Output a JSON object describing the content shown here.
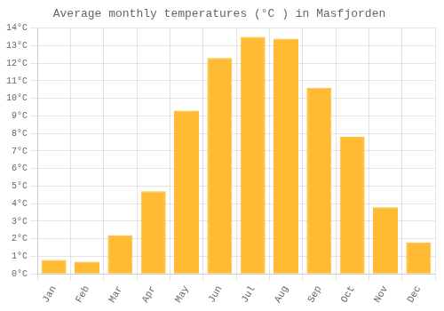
{
  "chart_data": {
    "type": "bar",
    "title": "Average monthly temperatures (°C ) in Masfjorden",
    "categories": [
      "Jan",
      "Feb",
      "Mar",
      "Apr",
      "May",
      "Jun",
      "Jul",
      "Aug",
      "Sep",
      "Oct",
      "Nov",
      "Dec"
    ],
    "values": [
      0.8,
      0.7,
      2.2,
      4.7,
      9.3,
      12.3,
      13.5,
      13.4,
      10.6,
      7.8,
      3.8,
      1.8
    ],
    "color": "#FFBB33",
    "ylim": [
      0,
      14
    ],
    "yticks": [
      {
        "value": 0,
        "label": "0°C"
      },
      {
        "value": 1,
        "label": "1°C"
      },
      {
        "value": 2,
        "label": "2°C"
      },
      {
        "value": 3,
        "label": "3°C"
      },
      {
        "value": 4,
        "label": "4°C"
      },
      {
        "value": 5,
        "label": "5°C"
      },
      {
        "value": 6,
        "label": "6°C"
      },
      {
        "value": 7,
        "label": "7°C"
      },
      {
        "value": 8,
        "label": "8°C"
      },
      {
        "value": 9,
        "label": "9°C"
      },
      {
        "value": 10,
        "label": "10°C"
      },
      {
        "value": 11,
        "label": "11°C"
      },
      {
        "value": 12,
        "label": "12°C"
      },
      {
        "value": 13,
        "label": "13°C"
      },
      {
        "value": 14,
        "label": "14°C"
      }
    ],
    "grid": true
  }
}
